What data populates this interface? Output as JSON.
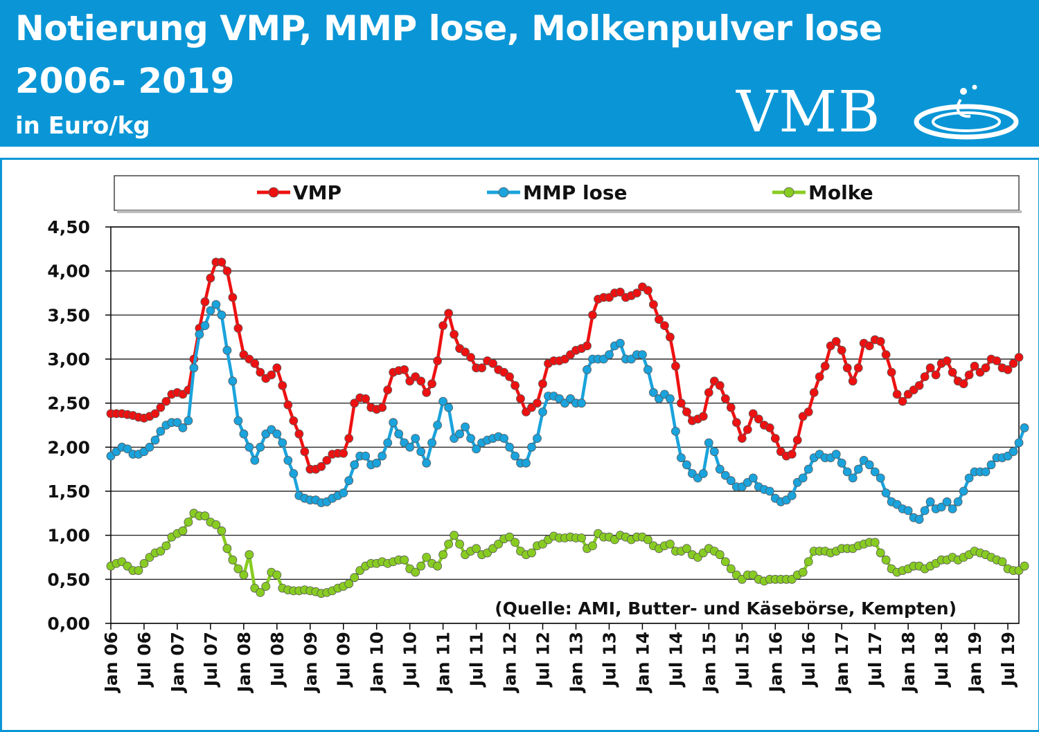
{
  "header": {
    "title_line1": "Notierung VMP, MMP lose, Molkenpulver lose",
    "title_line2": "2006- 2019",
    "subtitle": "in Euro/kg",
    "logo_text": "VMB",
    "background_color": "#0a96d6"
  },
  "chart_data": {
    "type": "line",
    "title": "Notierung VMP, MMP lose, Molkenpulver lose 2006- 2019",
    "ylabel": "in Euro/kg",
    "ylim": [
      0,
      4.5
    ],
    "y_ticks": [
      "0,00",
      "0,50",
      "1,00",
      "1,50",
      "2,00",
      "2,50",
      "3,00",
      "3,50",
      "4,00",
      "4,50"
    ],
    "x_start": "2006-01",
    "x_end": "2019-10",
    "x_ticks": [
      "Jan 06",
      "Jul 06",
      "Jan 07",
      "Jul 07",
      "Jan 08",
      "Jul 08",
      "Jan 09",
      "Jul 09",
      "Jan 10",
      "Jul 10",
      "Jan 11",
      "Jul 11",
      "Jan 12",
      "Jul 12",
      "Jan 13",
      "Jul 13",
      "Jan 14",
      "Jul 14",
      "Jan 15",
      "Jul 15",
      "Jan 16",
      "Jul 16",
      "Jan 17",
      "Jul 17",
      "Jan 18",
      "Jul 18",
      "Jan 19",
      "Jul 19"
    ],
    "grid": true,
    "legend_position": "top",
    "annotation": "(Quelle: AMI, Butter- und Käsebörse, Kempten)",
    "series": [
      {
        "name": "VMP",
        "color": "#ee1111",
        "values": [
          2.38,
          2.38,
          2.38,
          2.37,
          2.36,
          2.34,
          2.33,
          2.35,
          2.38,
          2.45,
          2.52,
          2.6,
          2.62,
          2.6,
          2.65,
          3.0,
          3.35,
          3.65,
          3.92,
          4.1,
          4.1,
          4.0,
          3.7,
          3.35,
          3.05,
          3.0,
          2.95,
          2.85,
          2.78,
          2.82,
          2.9,
          2.7,
          2.48,
          2.3,
          2.15,
          1.95,
          1.75,
          1.75,
          1.78,
          1.85,
          1.92,
          1.93,
          1.93,
          2.1,
          2.5,
          2.56,
          2.55,
          2.45,
          2.43,
          2.45,
          2.65,
          2.85,
          2.87,
          2.88,
          2.75,
          2.8,
          2.75,
          2.62,
          2.72,
          2.98,
          3.38,
          3.52,
          3.28,
          3.12,
          3.08,
          3.02,
          2.9,
          2.9,
          2.98,
          2.95,
          2.88,
          2.85,
          2.8,
          2.7,
          2.55,
          2.4,
          2.45,
          2.5,
          2.72,
          2.95,
          2.98,
          2.98,
          3.0,
          3.05,
          3.1,
          3.12,
          3.15,
          3.5,
          3.68,
          3.7,
          3.7,
          3.75,
          3.76,
          3.7,
          3.72,
          3.75,
          3.82,
          3.78,
          3.62,
          3.45,
          3.38,
          3.25,
          2.92,
          2.5,
          2.4,
          2.3,
          2.32,
          2.35,
          2.62,
          2.75,
          2.7,
          2.55,
          2.45,
          2.28,
          2.1,
          2.2,
          2.38,
          2.32,
          2.25,
          2.22,
          2.1,
          1.95,
          1.9,
          1.92,
          2.08,
          2.35,
          2.4,
          2.62,
          2.8,
          2.92,
          3.15,
          3.2,
          3.1,
          2.9,
          2.75,
          2.9,
          3.18,
          3.15,
          3.22,
          3.2,
          3.05,
          2.85,
          2.6,
          2.52,
          2.6,
          2.65,
          2.7,
          2.8,
          2.9,
          2.82,
          2.95,
          2.98,
          2.85,
          2.75,
          2.72,
          2.82,
          2.92,
          2.85,
          2.9,
          3.0,
          2.98,
          2.9,
          2.88,
          2.95,
          3.02
        ]
      },
      {
        "name": "MMP lose",
        "color": "#1aa3dc",
        "values": [
          1.9,
          1.95,
          2.0,
          1.98,
          1.92,
          1.92,
          1.95,
          2.0,
          2.08,
          2.18,
          2.25,
          2.28,
          2.28,
          2.22,
          2.3,
          2.9,
          3.28,
          3.38,
          3.55,
          3.62,
          3.5,
          3.1,
          2.75,
          2.3,
          2.15,
          2.0,
          1.85,
          2.0,
          2.15,
          2.2,
          2.15,
          2.05,
          1.85,
          1.7,
          1.45,
          1.42,
          1.4,
          1.4,
          1.37,
          1.38,
          1.42,
          1.45,
          1.48,
          1.62,
          1.8,
          1.9,
          1.9,
          1.8,
          1.82,
          1.9,
          2.05,
          2.28,
          2.15,
          2.05,
          2.0,
          2.1,
          1.95,
          1.82,
          2.05,
          2.25,
          2.52,
          2.45,
          2.1,
          2.15,
          2.23,
          2.1,
          1.98,
          2.05,
          2.08,
          2.1,
          2.12,
          2.1,
          2.0,
          1.9,
          1.82,
          1.82,
          2.0,
          2.1,
          2.4,
          2.58,
          2.58,
          2.55,
          2.5,
          2.55,
          2.5,
          2.5,
          2.88,
          3.0,
          3.0,
          3.0,
          3.05,
          3.15,
          3.18,
          3.0,
          3.0,
          3.05,
          3.05,
          2.88,
          2.62,
          2.55,
          2.6,
          2.55,
          2.18,
          1.88,
          1.8,
          1.7,
          1.65,
          1.7,
          2.05,
          1.95,
          1.75,
          1.68,
          1.62,
          1.55,
          1.55,
          1.6,
          1.65,
          1.55,
          1.52,
          1.5,
          1.42,
          1.38,
          1.4,
          1.45,
          1.6,
          1.65,
          1.75,
          1.88,
          1.92,
          1.88,
          1.88,
          1.92,
          1.82,
          1.72,
          1.65,
          1.75,
          1.85,
          1.8,
          1.72,
          1.65,
          1.48,
          1.38,
          1.35,
          1.3,
          1.28,
          1.2,
          1.18,
          1.28,
          1.38,
          1.3,
          1.32,
          1.38,
          1.3,
          1.38,
          1.5,
          1.65,
          1.72,
          1.72,
          1.72,
          1.8,
          1.88,
          1.88,
          1.9,
          1.95,
          2.05,
          2.22
        ]
      },
      {
        "name": "Molke",
        "color": "#88cc22",
        "values": [
          0.65,
          0.68,
          0.7,
          0.65,
          0.6,
          0.6,
          0.68,
          0.75,
          0.8,
          0.82,
          0.88,
          0.98,
          1.02,
          1.05,
          1.15,
          1.25,
          1.22,
          1.22,
          1.15,
          1.12,
          1.05,
          0.85,
          0.72,
          0.62,
          0.55,
          0.78,
          0.4,
          0.35,
          0.42,
          0.58,
          0.55,
          0.4,
          0.38,
          0.37,
          0.37,
          0.38,
          0.37,
          0.36,
          0.34,
          0.35,
          0.37,
          0.4,
          0.42,
          0.45,
          0.52,
          0.6,
          0.65,
          0.68,
          0.68,
          0.7,
          0.68,
          0.7,
          0.72,
          0.72,
          0.62,
          0.58,
          0.65,
          0.75,
          0.68,
          0.65,
          0.78,
          0.9,
          1.0,
          0.9,
          0.78,
          0.82,
          0.85,
          0.78,
          0.8,
          0.85,
          0.9,
          0.96,
          0.98,
          0.92,
          0.82,
          0.78,
          0.8,
          0.88,
          0.9,
          0.95,
          0.99,
          0.97,
          0.97,
          0.98,
          0.97,
          0.97,
          0.85,
          0.88,
          1.02,
          0.98,
          0.98,
          0.95,
          1.0,
          0.98,
          0.95,
          0.98,
          0.98,
          0.95,
          0.88,
          0.85,
          0.88,
          0.9,
          0.82,
          0.82,
          0.85,
          0.78,
          0.75,
          0.8,
          0.85,
          0.82,
          0.78,
          0.7,
          0.62,
          0.55,
          0.5,
          0.55,
          0.55,
          0.5,
          0.48,
          0.5,
          0.5,
          0.5,
          0.5,
          0.5,
          0.55,
          0.58,
          0.7,
          0.82,
          0.82,
          0.82,
          0.8,
          0.82,
          0.85,
          0.85,
          0.85,
          0.88,
          0.9,
          0.92,
          0.92,
          0.8,
          0.72,
          0.62,
          0.58,
          0.6,
          0.62,
          0.65,
          0.65,
          0.62,
          0.65,
          0.68,
          0.72,
          0.72,
          0.75,
          0.72,
          0.75,
          0.78,
          0.82,
          0.8,
          0.78,
          0.75,
          0.72,
          0.7,
          0.62,
          0.6,
          0.6,
          0.65
        ]
      }
    ]
  }
}
